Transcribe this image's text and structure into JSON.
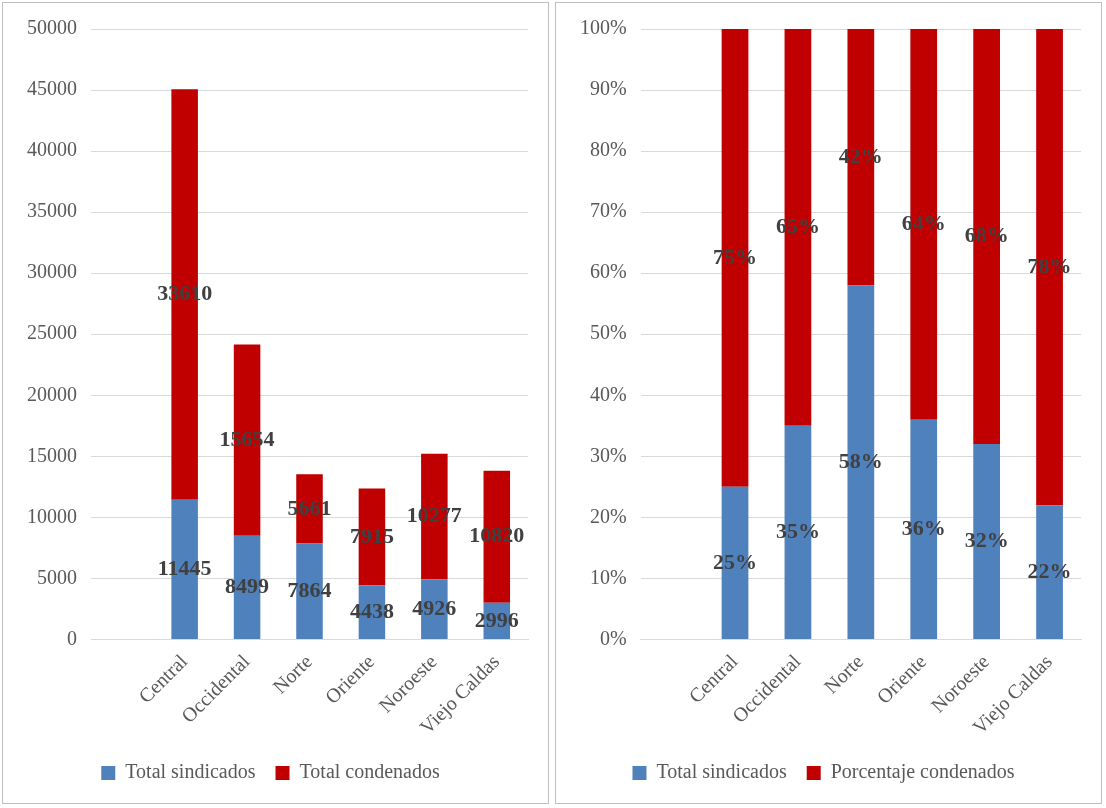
{
  "chart_data": [
    {
      "type": "bar",
      "stacked": true,
      "categories": [
        null,
        "Central",
        "Occidental",
        "Norte",
        "Oriente",
        "Noroeste",
        "Viejo Caldas"
      ],
      "series": [
        {
          "name": "Total sindicados",
          "color": "#4f81bd",
          "values": [
            null,
            11445,
            8499,
            7864,
            4438,
            4926,
            2996
          ]
        },
        {
          "name": "Total condenados",
          "color": "#c00000",
          "values": [
            null,
            33610,
            15654,
            5661,
            7915,
            10277,
            10820
          ]
        }
      ],
      "ylim": [
        0,
        50000
      ],
      "yticks": [
        0,
        5000,
        10000,
        15000,
        20000,
        25000,
        30000,
        35000,
        40000,
        45000,
        50000
      ],
      "grid": "y",
      "legend": "bottom",
      "data_labels": true
    },
    {
      "type": "bar",
      "stacked": true,
      "categories": [
        null,
        "Central",
        "Occidental",
        "Norte",
        "Oriente",
        "Noroeste",
        "Viejo Caldas"
      ],
      "series": [
        {
          "name": "Total sindicados",
          "color": "#4f81bd",
          "values": [
            null,
            25,
            35,
            58,
            36,
            32,
            22
          ],
          "value_labels": [
            null,
            "25%",
            "35%",
            "58%",
            "36%",
            "32%",
            "22%"
          ]
        },
        {
          "name": "Porcentaje condenados",
          "color": "#c00000",
          "values": [
            null,
            75,
            65,
            42,
            64,
            68,
            78
          ],
          "value_labels": [
            null,
            "75%",
            "65%",
            "42%",
            "64%",
            "68%",
            "78%"
          ]
        }
      ],
      "ylim": [
        0,
        100
      ],
      "yticks": [
        {
          "value": 0,
          "label": "0%"
        },
        {
          "value": 10,
          "label": "10%"
        },
        {
          "value": 20,
          "label": "20%"
        },
        {
          "value": 30,
          "label": "30%"
        },
        {
          "value": 40,
          "label": "40%"
        },
        {
          "value": 50,
          "label": "50%"
        },
        {
          "value": 60,
          "label": "60%"
        },
        {
          "value": 70,
          "label": "70%"
        },
        {
          "value": 80,
          "label": "80%"
        },
        {
          "value": 90,
          "label": "90%"
        },
        {
          "value": 100,
          "label": "100%"
        }
      ],
      "grid": "y",
      "legend": "bottom"
    }
  ]
}
